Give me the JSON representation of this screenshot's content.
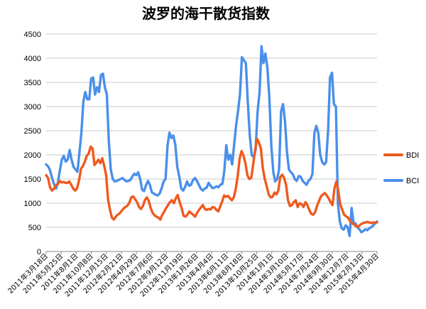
{
  "title": "波罗的海干散货指数",
  "chart_data": {
    "type": "line",
    "title": "波罗的海干散货指数",
    "xlabel": "",
    "ylabel": "",
    "ylim": [
      0,
      4500
    ],
    "yticks": [
      0,
      500,
      1000,
      1500,
      2000,
      2500,
      3000,
      3500,
      4000,
      4500
    ],
    "grid": true,
    "legend_position": "right",
    "x_tick_labels": [
      "2011年3月18日",
      "2011年5月25日",
      "2011年8月1日",
      "2011年10月8日",
      "2011年12月15日",
      "2012年2月21日",
      "2012年4月29日",
      "2012年7月6日",
      "2012年9月12日",
      "2012年11月19日",
      "2013年1月26日",
      "2013年4月4日",
      "2013年6月11日",
      "2013年8月18日",
      "2013年10月25日",
      "2014年1月1日",
      "2014年3月10日",
      "2014年5月17日",
      "2014年7月24日",
      "2014年9月30日",
      "2014年12月7日",
      "2015年2月13日",
      "2015年4月30日"
    ],
    "series": [
      {
        "name": "BDI",
        "color": "#ef5a1e",
        "values": [
          1580,
          1520,
          1330,
          1260,
          1300,
          1370,
          1390,
          1460,
          1430,
          1440,
          1420,
          1420,
          1450,
          1380,
          1300,
          1260,
          1310,
          1470,
          1710,
          1770,
          1860,
          1980,
          2030,
          2170,
          2130,
          1790,
          1840,
          1900,
          1830,
          1930,
          1770,
          1580,
          1080,
          860,
          700,
          660,
          720,
          760,
          790,
          840,
          890,
          920,
          950,
          1010,
          1120,
          1140,
          1080,
          1020,
          920,
          880,
          940,
          1060,
          1120,
          1050,
          900,
          800,
          750,
          720,
          700,
          660,
          760,
          820,
          900,
          960,
          1020,
          1060,
          1000,
          1100,
          1170,
          1020,
          900,
          740,
          720,
          760,
          830,
          790,
          760,
          720,
          800,
          860,
          910,
          960,
          880,
          860,
          880,
          870,
          920,
          910,
          860,
          830,
          940,
          1040,
          1160,
          1130,
          1150,
          1100,
          1060,
          1120,
          1300,
          1560,
          1920,
          2080,
          1980,
          1820,
          1580,
          1500,
          1520,
          1800,
          2100,
          2330,
          2250,
          2130,
          1720,
          1500,
          1350,
          1180,
          1120,
          1130,
          1220,
          1180,
          1260,
          1540,
          1590,
          1520,
          1380,
          1060,
          940,
          960,
          1020,
          1060,
          920,
          1000,
          980,
          920,
          1020,
          960,
          860,
          780,
          760,
          810,
          940,
          1040,
          1140,
          1180,
          1210,
          1160,
          1100,
          1020,
          960,
          1300,
          1450,
          1250,
          980,
          870,
          760,
          730,
          700,
          640,
          590,
          560,
          530,
          510,
          540,
          570,
          590,
          600,
          610,
          600,
          590,
          600,
          600,
          600
        ],
        "line_width": 3.4
      },
      {
        "name": "BCI",
        "color": "#4a8fea",
        "values": [
          1800,
          1760,
          1680,
          1520,
          1400,
          1300,
          1420,
          1680,
          1900,
          1980,
          1860,
          1900,
          2100,
          1900,
          1750,
          1700,
          1650,
          2050,
          2450,
          3100,
          3300,
          3150,
          3150,
          3580,
          3600,
          3250,
          3400,
          3300,
          3650,
          3680,
          3400,
          3250,
          2300,
          1700,
          1500,
          1450,
          1460,
          1480,
          1500,
          1520,
          1480,
          1450,
          1460,
          1480,
          1550,
          1610,
          1580,
          1640,
          1500,
          1280,
          1250,
          1370,
          1460,
          1380,
          1220,
          1200,
          1170,
          1160,
          1200,
          1310,
          1450,
          1500,
          2200,
          2460,
          2350,
          2400,
          2200,
          1750,
          1550,
          1300,
          1260,
          1340,
          1450,
          1360,
          1380,
          1480,
          1520,
          1460,
          1380,
          1300,
          1260,
          1300,
          1320,
          1420,
          1360,
          1310,
          1320,
          1350,
          1330,
          1380,
          1400,
          1660,
          2200,
          1900,
          2000,
          1800,
          2200,
          2600,
          2900,
          3250,
          4020,
          3960,
          3900,
          3100,
          2400,
          2000,
          1950,
          2100,
          2900,
          3300,
          4250,
          3900,
          4100,
          3800,
          3200,
          2200,
          1650,
          1450,
          1500,
          1700,
          2900,
          3050,
          2700,
          2050,
          1700,
          1640,
          1600,
          1500,
          1460,
          1560,
          1550,
          1460,
          1420,
          1380,
          1460,
          1500,
          1600,
          2450,
          2600,
          2450,
          2000,
          1850,
          1800,
          1850,
          2500,
          3600,
          3700,
          3050,
          3000,
          1000,
          620,
          480,
          450,
          540,
          500,
          320,
          900,
          600,
          580,
          500,
          460,
          400,
          420,
          460,
          440,
          480,
          500,
          540,
          580,
          620
        ]
      }
    ]
  }
}
